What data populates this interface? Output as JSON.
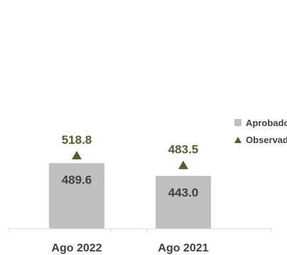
{
  "chart_data": {
    "type": "bar",
    "categories": [
      "Ago 2022",
      "Ago 2021"
    ],
    "series": [
      {
        "name": "Aprobado",
        "type": "bar",
        "values": [
          489.6,
          443.0
        ],
        "value_labels": [
          "489.6",
          "443.0"
        ],
        "color": "#bfbfbf"
      },
      {
        "name": "Observado",
        "type": "marker",
        "values": [
          518.8,
          483.5
        ],
        "value_labels": [
          "518.8",
          "483.5"
        ],
        "color": "#4f6228"
      }
    ],
    "legend_position": "right",
    "grid": false
  }
}
